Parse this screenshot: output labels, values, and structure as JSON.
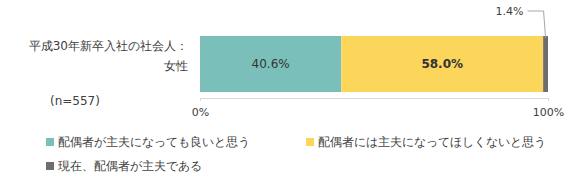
{
  "chart_data": {
    "type": "bar",
    "orientation": "horizontal",
    "stacked": true,
    "data_labels": true,
    "categories": [
      "平成30年新卒入社の社会人：女性"
    ],
    "annotations": [
      "(n=557)"
    ],
    "series": [
      {
        "name": "配偶者が主夫になっても良いと思う",
        "color": "#7bbfbb",
        "values": [
          40.6
        ],
        "value_labels": [
          "40.6%"
        ]
      },
      {
        "name": "配偶者には主夫になってほしくないと思う",
        "color": "#fcd55b",
        "values": [
          58.0
        ],
        "value_labels": [
          "58.0%"
        ]
      },
      {
        "name": "現在、配偶者が主夫である",
        "color": "#6e6e6e",
        "values": [
          1.4
        ],
        "value_labels": [
          "1.4%"
        ]
      }
    ],
    "xlim": [
      0,
      100
    ],
    "xticks": [
      {
        "value": 0,
        "label": "0%"
      },
      {
        "value": 100,
        "label": "100%"
      }
    ],
    "grid": false,
    "legend": "bottom"
  }
}
